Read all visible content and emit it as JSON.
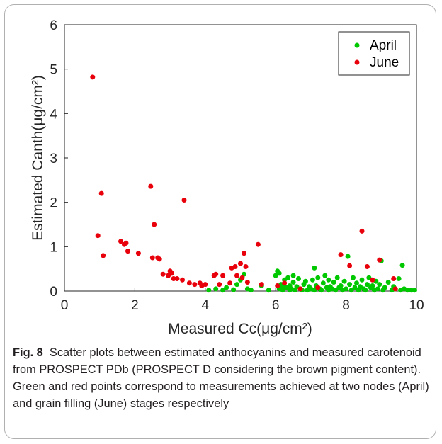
{
  "chart_data": {
    "type": "scatter",
    "xlabel": "Measured Cc(μg/cm²)",
    "ylabel": "Estimated Canth(μg/cm²)",
    "xlim": [
      0,
      10
    ],
    "ylim": [
      0,
      6
    ],
    "x_ticks": [
      "0",
      "2",
      "4",
      "6",
      "8",
      "10"
    ],
    "y_ticks": [
      "0",
      "1",
      "2",
      "3",
      "4",
      "5",
      "6"
    ],
    "grid": false,
    "legend_position": "top-right",
    "series": [
      {
        "name": "April",
        "color": "#00c800",
        "points": [
          [
            4.1,
            0.02
          ],
          [
            4.3,
            0.05
          ],
          [
            4.5,
            0.02
          ],
          [
            4.6,
            0.08
          ],
          [
            4.8,
            0.03
          ],
          [
            4.9,
            0.15
          ],
          [
            5.0,
            0.25
          ],
          [
            5.1,
            0.38
          ],
          [
            5.2,
            0.05
          ],
          [
            5.3,
            0.02
          ],
          [
            5.6,
            0.12
          ],
          [
            5.8,
            0.02
          ],
          [
            6.0,
            0.35
          ],
          [
            6.05,
            0.45
          ],
          [
            6.1,
            0.4
          ],
          [
            6.1,
            0.05
          ],
          [
            6.15,
            0.15
          ],
          [
            6.2,
            0.02
          ],
          [
            6.2,
            0.1
          ],
          [
            6.25,
            0.25
          ],
          [
            6.3,
            0.08
          ],
          [
            6.35,
            0.3
          ],
          [
            6.4,
            0.02
          ],
          [
            6.4,
            0.12
          ],
          [
            6.45,
            0.05
          ],
          [
            6.5,
            0.2
          ],
          [
            6.5,
            0.35
          ],
          [
            6.55,
            0.02
          ],
          [
            6.6,
            0.1
          ],
          [
            6.65,
            0.28
          ],
          [
            6.7,
            0.05
          ],
          [
            6.75,
            0.02
          ],
          [
            6.8,
            0.15
          ],
          [
            6.85,
            0.22
          ],
          [
            6.9,
            0.02
          ],
          [
            6.95,
            0.1
          ],
          [
            7.0,
            0.05
          ],
          [
            7.05,
            0.25
          ],
          [
            7.1,
            0.52
          ],
          [
            7.1,
            0.02
          ],
          [
            7.15,
            0.12
          ],
          [
            7.2,
            0.3
          ],
          [
            7.25,
            0.05
          ],
          [
            7.3,
            0.02
          ],
          [
            7.35,
            0.18
          ],
          [
            7.4,
            0.35
          ],
          [
            7.45,
            0.08
          ],
          [
            7.5,
            0.02
          ],
          [
            7.5,
            0.25
          ],
          [
            7.55,
            0.1
          ],
          [
            7.6,
            0.05
          ],
          [
            7.65,
            0.2
          ],
          [
            7.7,
            0.02
          ],
          [
            7.75,
            0.3
          ],
          [
            7.8,
            0.08
          ],
          [
            7.85,
            0.12
          ],
          [
            7.9,
            0.02
          ],
          [
            7.95,
            0.22
          ],
          [
            8.0,
            0.05
          ],
          [
            8.05,
            0.78
          ],
          [
            8.1,
            0.15
          ],
          [
            8.15,
            0.02
          ],
          [
            8.2,
            0.3
          ],
          [
            8.25,
            0.08
          ],
          [
            8.3,
            0.18
          ],
          [
            8.35,
            0.02
          ],
          [
            8.4,
            0.1
          ],
          [
            8.45,
            0.25
          ],
          [
            8.5,
            0.05
          ],
          [
            8.55,
            0.02
          ],
          [
            8.6,
            0.15
          ],
          [
            8.65,
            0.3
          ],
          [
            8.7,
            0.08
          ],
          [
            8.75,
            0.12
          ],
          [
            8.8,
            0.02
          ],
          [
            8.85,
            0.22
          ],
          [
            8.9,
            0.05
          ],
          [
            8.95,
            0.15
          ],
          [
            9.0,
            0.68
          ],
          [
            9.05,
            0.02
          ],
          [
            9.1,
            0.08
          ],
          [
            9.2,
            0.2
          ],
          [
            9.3,
            0.02
          ],
          [
            9.35,
            0.1
          ],
          [
            9.4,
            0.05
          ],
          [
            9.5,
            0.28
          ],
          [
            9.55,
            0.02
          ],
          [
            9.6,
            0.58
          ],
          [
            9.65,
            0.05
          ],
          [
            9.75,
            0.02
          ],
          [
            9.85,
            0.02
          ],
          [
            9.95,
            0.02
          ]
        ]
      },
      {
        "name": "June",
        "color": "#e8000b",
        "points": [
          [
            0.8,
            4.82
          ],
          [
            0.95,
            1.25
          ],
          [
            1.05,
            2.2
          ],
          [
            1.1,
            0.8
          ],
          [
            1.6,
            1.12
          ],
          [
            1.7,
            1.05
          ],
          [
            1.75,
            1.08
          ],
          [
            1.8,
            0.9
          ],
          [
            2.1,
            0.85
          ],
          [
            2.45,
            2.36
          ],
          [
            2.5,
            0.75
          ],
          [
            2.55,
            1.5
          ],
          [
            2.65,
            0.75
          ],
          [
            2.7,
            0.72
          ],
          [
            2.8,
            0.38
          ],
          [
            2.95,
            0.35
          ],
          [
            3.0,
            0.45
          ],
          [
            3.05,
            0.4
          ],
          [
            3.1,
            0.28
          ],
          [
            3.2,
            0.28
          ],
          [
            3.35,
            0.25
          ],
          [
            3.4,
            2.05
          ],
          [
            3.55,
            0.18
          ],
          [
            3.7,
            0.15
          ],
          [
            3.85,
            0.18
          ],
          [
            3.9,
            0.12
          ],
          [
            4.0,
            0.15
          ],
          [
            4.25,
            0.35
          ],
          [
            4.3,
            0.38
          ],
          [
            4.4,
            0.15
          ],
          [
            4.5,
            0.35
          ],
          [
            4.7,
            0.18
          ],
          [
            4.75,
            0.52
          ],
          [
            4.85,
            0.55
          ],
          [
            4.9,
            0.35
          ],
          [
            5.0,
            0.62
          ],
          [
            5.05,
            0.3
          ],
          [
            5.1,
            0.85
          ],
          [
            5.15,
            0.55
          ],
          [
            5.2,
            0.2
          ],
          [
            5.5,
            1.05
          ],
          [
            5.6,
            0.15
          ],
          [
            6.05,
            0.12
          ],
          [
            6.25,
            0.18
          ],
          [
            6.7,
            0.05
          ],
          [
            7.2,
            0.08
          ],
          [
            7.85,
            0.82
          ],
          [
            8.1,
            0.57
          ],
          [
            8.45,
            1.35
          ],
          [
            8.6,
            0.55
          ],
          [
            8.75,
            0.25
          ],
          [
            8.95,
            0.7
          ],
          [
            9.35,
            0.28
          ],
          [
            9.4,
            0.05
          ]
        ]
      }
    ]
  },
  "caption": {
    "label": "Fig. 8",
    "text": "Scatter plots between estimated anthocyanins and measured carotenoid from PROSPECT PDb (PROSPECT D considering the brown pigment content). Green and red points correspond to measurements achieved at two nodes (April) and grain filling (June) stages respectively"
  }
}
